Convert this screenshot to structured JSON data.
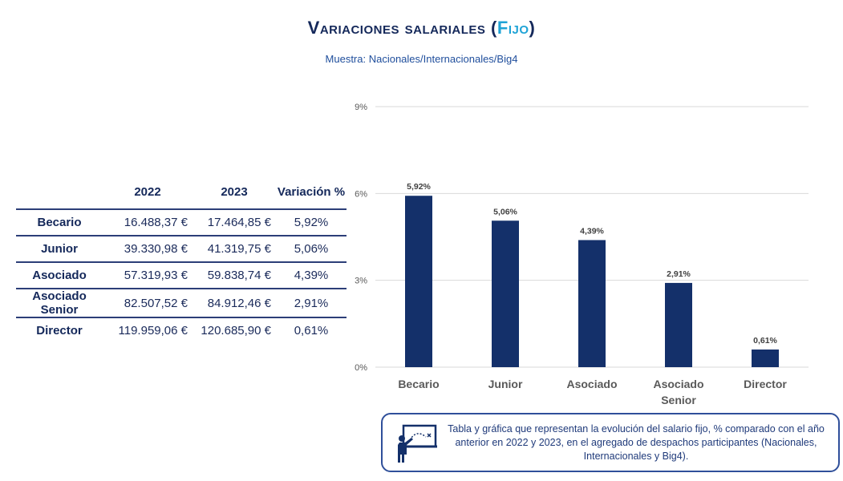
{
  "header": {
    "title_main": "Variaciones salariales (",
    "title_accent": "Fijo",
    "title_end": ")",
    "subtitle": "Muestra: Nacionales/Internacionales/Big4"
  },
  "table": {
    "columns": [
      "",
      "2022",
      "2023",
      "Variación %"
    ],
    "rows": [
      {
        "label": "Becario",
        "y2022": "16.488,37 €",
        "y2023": "17.464,85 €",
        "var": "5,92%"
      },
      {
        "label": "Junior",
        "y2022": "39.330,98 €",
        "y2023": "41.319,75 €",
        "var": "5,06%"
      },
      {
        "label": "Asociado",
        "y2022": "57.319,93 €",
        "y2023": "59.838,74 €",
        "var": "4,39%"
      },
      {
        "label": "Asociado Senior",
        "y2022": "82.507,52 €",
        "y2023": "84.912,46 €",
        "var": "2,91%"
      },
      {
        "label": "Director",
        "y2022": "119.959,06 €",
        "y2023": "120.685,90 €",
        "var": "0,61%"
      }
    ]
  },
  "chart_data": {
    "type": "bar",
    "categories": [
      "Becario",
      "Junior",
      "Asociado",
      "Asociado Senior",
      "Director"
    ],
    "values": [
      5.92,
      5.06,
      4.39,
      2.91,
      0.61
    ],
    "value_labels": [
      "5,92%",
      "5,06%",
      "4,39%",
      "2,91%",
      "0,61%"
    ],
    "yticks": [
      0,
      3,
      6,
      9
    ],
    "ytick_labels": [
      "0%",
      "3%",
      "6%",
      "9%"
    ],
    "ylim": [
      0,
      9
    ],
    "grid": true,
    "bar_color": "#14306a"
  },
  "note": {
    "text": "Tabla y gráfica que representan la evolución del salario fijo, % comparado con el año anterior en 2022 y 2023, en el agregado de despachos participantes (Nacionales, Internacionales y Big4)."
  },
  "colors": {
    "title": "#14285a",
    "accent": "#1fa3d6",
    "bar": "#14306a",
    "border": "#2f4f9a"
  }
}
